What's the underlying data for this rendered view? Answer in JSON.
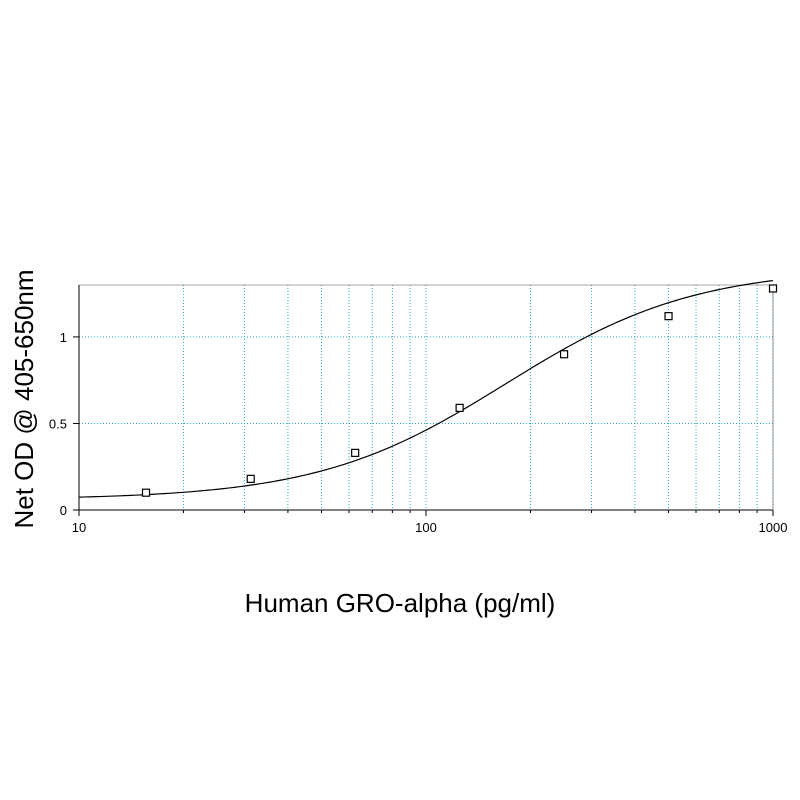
{
  "chart_data": {
    "type": "scatter",
    "title": "",
    "xlabel": "Human GRO-alpha (pg/ml)",
    "ylabel": "Net OD @ 405-650nm",
    "x_scale": "log",
    "xlim": [
      10,
      1000
    ],
    "ylim": [
      0,
      1.3
    ],
    "x_ticks": [
      10,
      100,
      1000
    ],
    "x_tick_labels": [
      "10",
      "100",
      "1000"
    ],
    "y_ticks": [
      0,
      0.5,
      1
    ],
    "y_tick_labels": [
      "0",
      "0.5",
      "1"
    ],
    "grid": true,
    "grid_color": "#2aa8c8",
    "series": [
      {
        "marker": "square",
        "x": [
          15.6,
          31.25,
          62.5,
          125,
          250,
          500,
          1000
        ],
        "y": [
          0.1,
          0.18,
          0.33,
          0.59,
          0.9,
          1.12,
          1.28
        ]
      }
    ],
    "fit_curve": {
      "type": "4PL",
      "bottom": 0.06,
      "top": 1.4,
      "ec50": 170,
      "hill": 1.6
    }
  }
}
